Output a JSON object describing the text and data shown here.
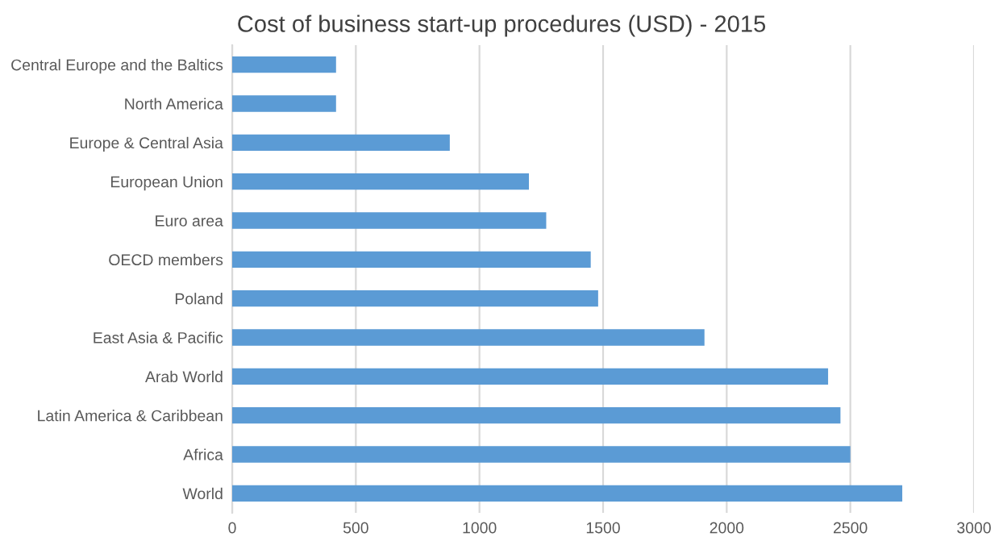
{
  "chart_data": {
    "type": "bar",
    "orientation": "horizontal",
    "title": "Cost of business start-up procedures (USD) - 2015",
    "categories": [
      "Central Europe and the Baltics",
      "North America",
      "Europe & Central Asia",
      "European Union",
      "Euro area",
      "OECD members",
      "Poland",
      "East Asia & Pacific",
      "Arab World",
      "Latin America & Caribbean",
      "Africa",
      "World"
    ],
    "values": [
      420,
      420,
      880,
      1200,
      1270,
      1450,
      1480,
      1910,
      2410,
      2460,
      2500,
      2710
    ],
    "color": "#5b9bd5",
    "xlim": [
      0,
      3000
    ],
    "xticks": [
      0,
      500,
      1000,
      1500,
      2000,
      2500,
      3000
    ],
    "grid": "x",
    "legend": false
  }
}
